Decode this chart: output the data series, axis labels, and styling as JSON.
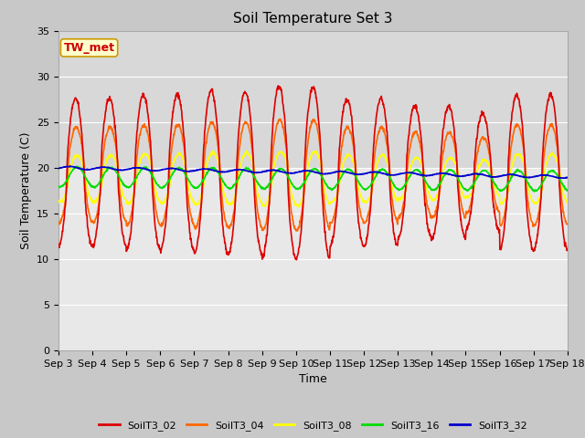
{
  "title": "Soil Temperature Set 3",
  "xlabel": "Time",
  "ylabel": "Soil Temperature (C)",
  "ylim": [
    0,
    35
  ],
  "yticks": [
    0,
    5,
    10,
    15,
    20,
    25,
    30,
    35
  ],
  "x_labels": [
    "Sep 3",
    "Sep 4",
    "Sep 5",
    "Sep 6",
    "Sep 7",
    "Sep 8",
    "Sep 9",
    "Sep 10",
    "Sep 11",
    "Sep 12",
    "Sep 13",
    "Sep 14",
    "Sep 15",
    "Sep 16",
    "Sep 17",
    "Sep 18"
  ],
  "series_names": [
    "SoilT3_02",
    "SoilT3_04",
    "SoilT3_08",
    "SoilT3_16",
    "SoilT3_32"
  ],
  "series_colors": [
    "#dd0000",
    "#ff6600",
    "#ffff00",
    "#00dd00",
    "#0000cc"
  ],
  "annotation_text": "TW_met",
  "annotation_color": "#cc0000",
  "annotation_bg": "#ffffcc",
  "annotation_border": "#cc9900",
  "fig_bg": "#c8c8c8",
  "plot_bg": "#e8e8e8",
  "plot_bg_upper": "#d8d8d8",
  "grid_color": "#ffffff",
  "title_fontsize": 11,
  "axis_fontsize": 9,
  "tick_fontsize": 8,
  "lw": 1.2
}
